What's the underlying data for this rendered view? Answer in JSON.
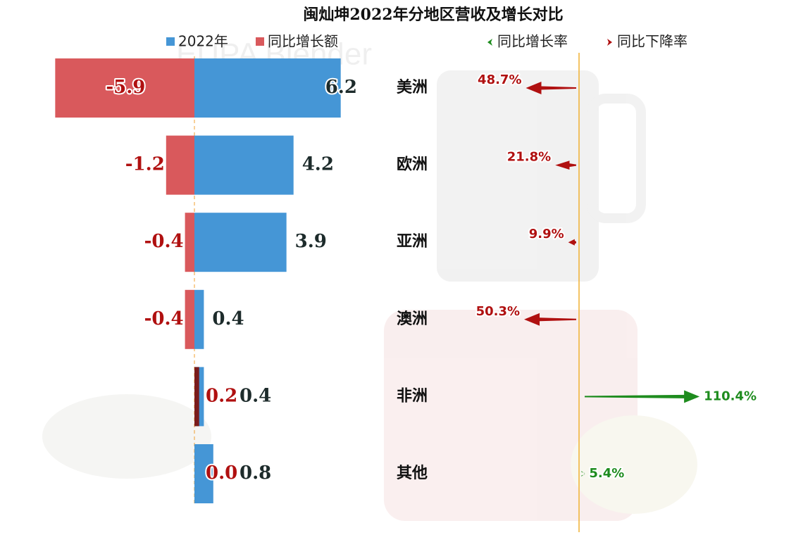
{
  "chart_data": {
    "type": "diverging-bar",
    "title": "闽灿坤2022年分地区营收及增长对比",
    "watermark": "EUPA Blender",
    "categories": [
      "美洲",
      "欧洲",
      "亚洲",
      "澳洲",
      "非洲",
      "其他"
    ],
    "series": [
      {
        "name": "2022年",
        "color": "#4596d6",
        "label_color": "#1d2b2b",
        "values": [
          6.2,
          4.2,
          3.9,
          0.4,
          0.4,
          0.8
        ]
      },
      {
        "name": "同比增长额",
        "color": "#d9595c",
        "label_color": "#b01010",
        "values": [
          -5.9,
          -1.2,
          -0.4,
          -0.4,
          0.2,
          0.0
        ],
        "value_labels": [
          "-5.9",
          "-1.2",
          "-0.4",
          "-0.4",
          "0.2",
          "0.0"
        ]
      }
    ],
    "rates": {
      "values": [
        -48.7,
        -21.8,
        -9.9,
        -50.3,
        110.4,
        5.4
      ],
      "value_labels": [
        "48.7%",
        "21.8%",
        "9.9%",
        "50.3%",
        "110.4%",
        "5.4%"
      ],
      "legend": [
        {
          "name": "同比增长率",
          "color": "#1e8c1e"
        },
        {
          "name": "同比下降率",
          "color": "#b01010"
        }
      ]
    }
  }
}
